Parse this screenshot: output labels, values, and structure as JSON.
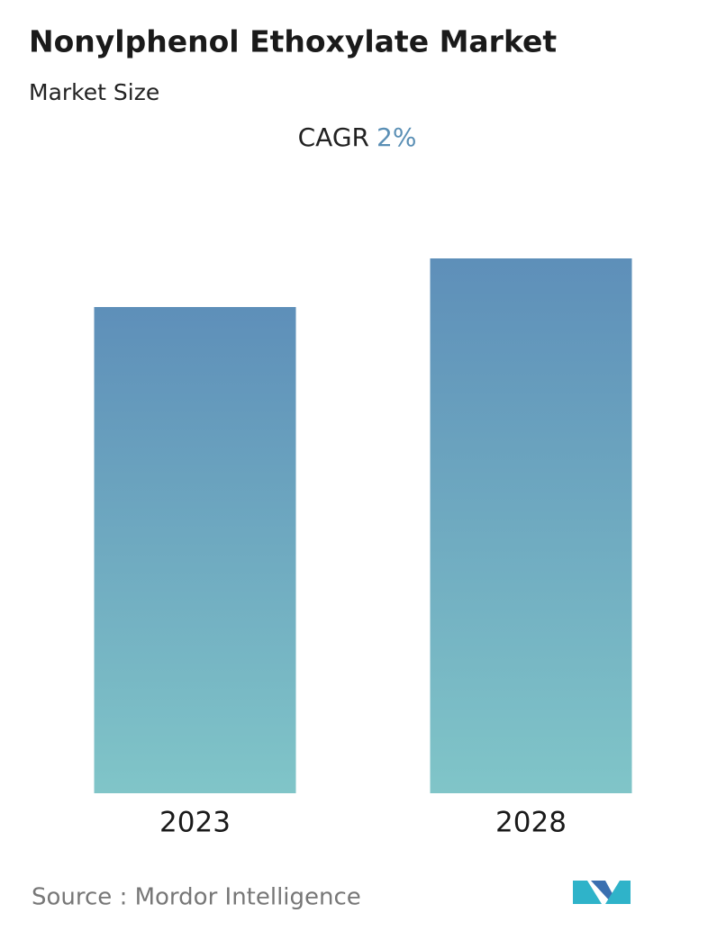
{
  "chart_data": {
    "type": "bar",
    "title": "Nonylphenol Ethoxylate Market",
    "subtitle": "Market Size",
    "cagr_label": "CAGR",
    "cagr": {
      "value": 2,
      "label": "2%"
    },
    "categories": [
      "2023",
      "2028"
    ],
    "values": [
      100,
      110
    ],
    "gradient": [
      "#5e8fb9",
      "#80c5c8"
    ],
    "source": "Source :  Mordor Intelligence"
  }
}
